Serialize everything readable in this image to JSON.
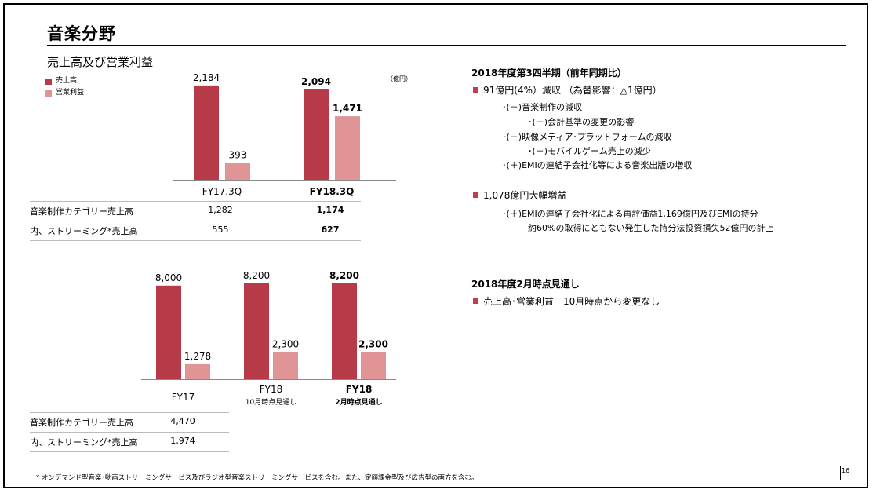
{
  "page": {
    "title": "音楽分野",
    "section_title": "売上高及び営業利益",
    "unit_label": "（億円）",
    "page_number": "16",
    "footnote": "* オンデマンド型音楽･動画ストリーミングサービス及びラジオ型音楽ストリーミングサービスを含む。また、定額課金型及び広告型の両方を含む。"
  },
  "legend": [
    {
      "label": "売上高",
      "color": "#b73a49"
    },
    {
      "label": "営業利益",
      "color": "#e09496"
    }
  ],
  "chart_data": [
    {
      "type": "bar",
      "categories": [
        "FY17.3Q",
        "FY18.3Q"
      ],
      "category_bold": [
        false,
        true
      ],
      "series": [
        {
          "name": "売上高",
          "values": [
            2184,
            2094
          ],
          "color": "#b73a49"
        },
        {
          "name": "営業利益",
          "values": [
            393,
            1471
          ],
          "color": "#e09496"
        }
      ],
      "value_labels": [
        [
          "2,184",
          "2,094"
        ],
        [
          "393",
          "1,471"
        ]
      ],
      "ylim": [
        0,
        2400
      ]
    },
    {
      "type": "bar",
      "categories": [
        "FY17",
        "FY18",
        "FY18"
      ],
      "category_sublabels": [
        "",
        "10月時点見通し",
        "2月時点見通し"
      ],
      "category_bold": [
        false,
        false,
        true
      ],
      "series": [
        {
          "name": "売上高",
          "values": [
            8000,
            8200,
            8200
          ],
          "color": "#b73a49"
        },
        {
          "name": "営業利益",
          "values": [
            1278,
            2300,
            2300
          ],
          "color": "#e09496"
        }
      ],
      "value_labels": [
        [
          "8,000",
          "8,200",
          "8,200"
        ],
        [
          "1,278",
          "2,300",
          "2,300"
        ]
      ],
      "ylim": [
        0,
        10000
      ]
    }
  ],
  "table_top": {
    "rows": [
      {
        "label": "音楽制作カテゴリー売上高",
        "values": [
          "1,282",
          "1,174"
        ]
      },
      {
        "label": "内、ストリーミング*売上高",
        "values": [
          "555",
          "627"
        ]
      }
    ]
  },
  "table_bottom": {
    "rows": [
      {
        "label": "音楽制作カテゴリー売上高",
        "values": [
          "4,470"
        ]
      },
      {
        "label": "内、ストリーミング*売上高",
        "values": [
          "1,974"
        ]
      }
    ]
  },
  "right": {
    "q3_heading": "2018年度第3四半期（前年同期比）",
    "bullet1": "91億円(4%）減収 （為替影響：△1億円）",
    "bullet1_subs": [
      "･(－)音楽制作の減収",
      "･(－)会計基準の変更の影響",
      "･(－)映像メディア･プラットフォームの減収",
      "･(－)モバイルゲーム売上の減少",
      "･(＋)EMIの連結子会社化等による音楽出版の増収"
    ],
    "bullet2": "1,078億円大幅増益",
    "bullet2_subs": [
      "･(＋)EMIの連結子会社化による再評価益1,169億円及びEMIの持分",
      "約60%の取得にともない発生した持分法投資損失52億円の計上"
    ],
    "outlook_heading": "2018年度2月時点見通し",
    "bullet3": "売上高･営業利益　10月時点から変更なし"
  }
}
